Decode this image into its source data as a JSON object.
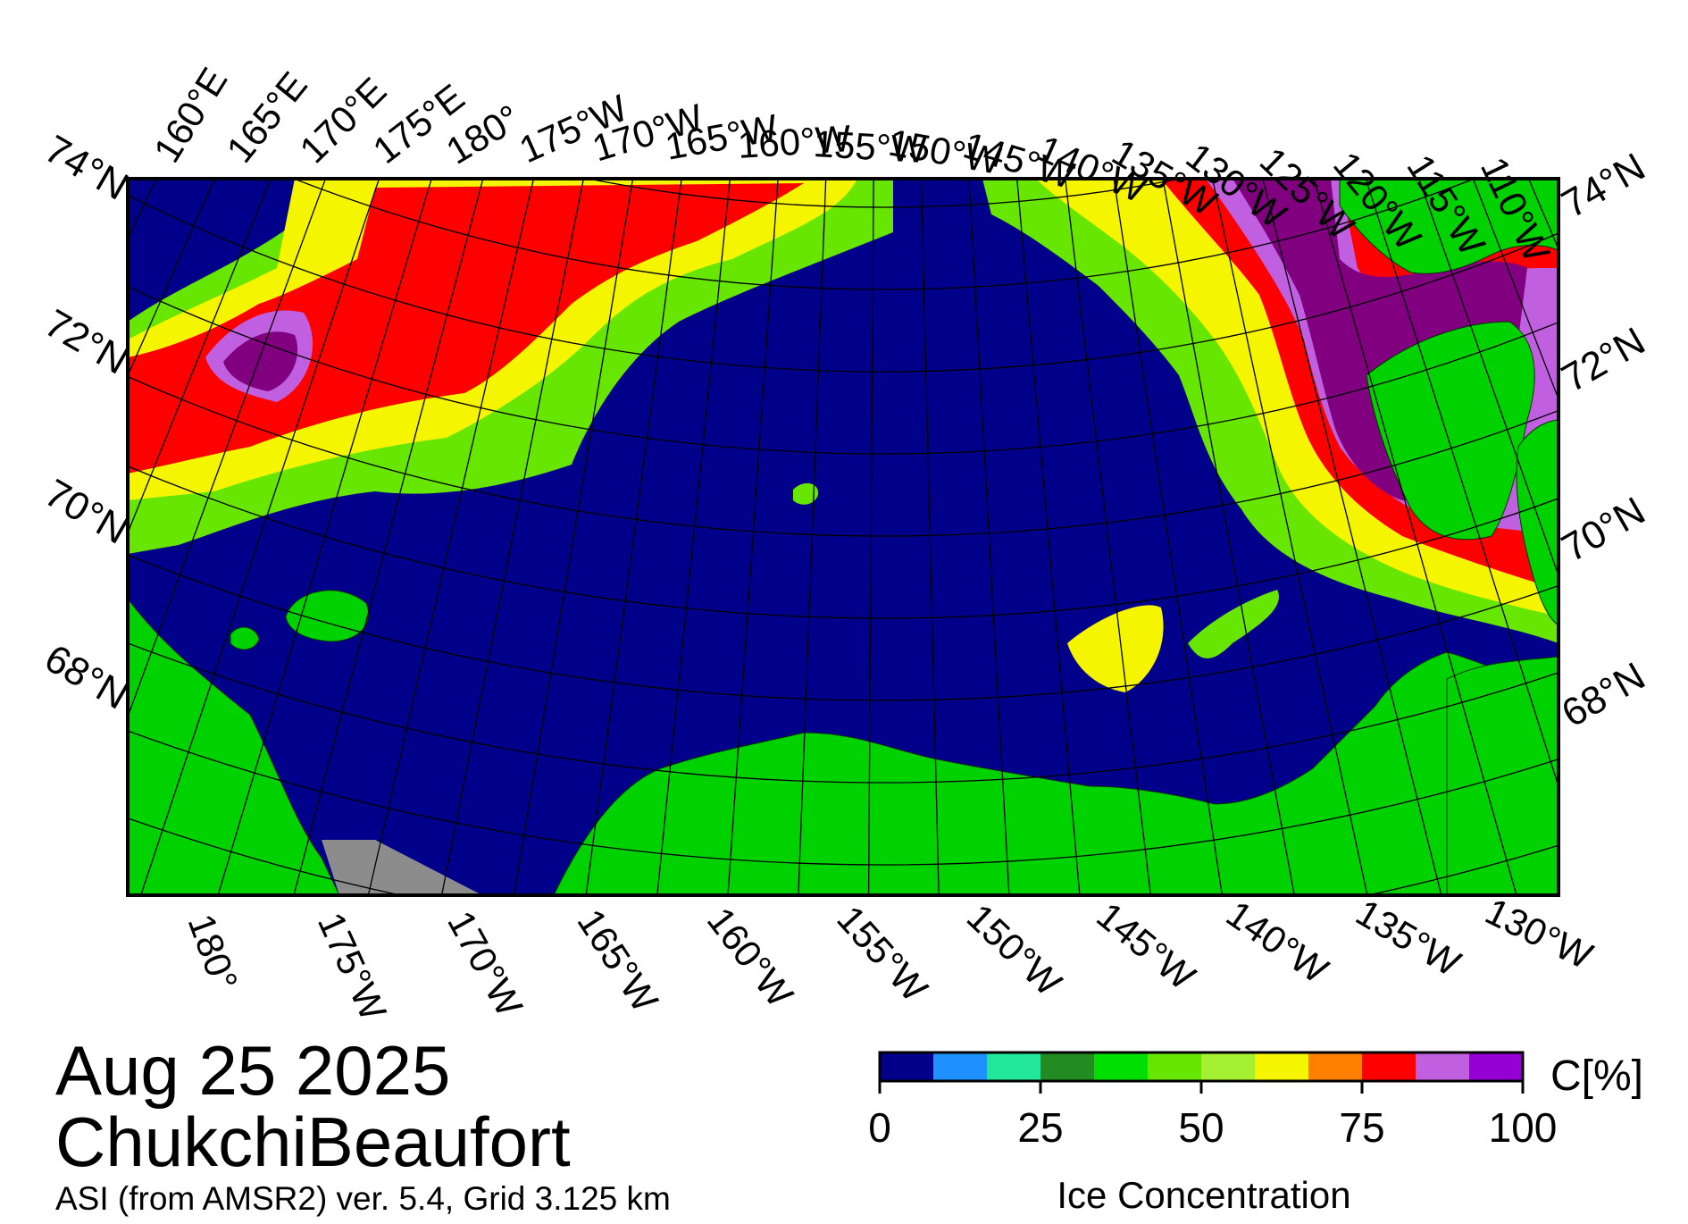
{
  "date": "Aug 25 2025",
  "region": "ChukchiBeaufort",
  "product": "ASI (from AMSR2) ver. 5.4,  Grid 3.125 km",
  "colorbar": {
    "title": "Ice Concentration",
    "unit": "C[%]",
    "tick_labels": [
      "0",
      "25",
      "50",
      "75",
      "100"
    ],
    "colors": [
      "#00008a",
      "#1e90ff",
      "#22e69a",
      "#228b22",
      "#00e000",
      "#66e600",
      "#a6f033",
      "#f5f500",
      "#ff7f00",
      "#ff0000",
      "#c060e0",
      "#9400d3"
    ]
  },
  "map": {
    "top_labels": [
      "160°E",
      "165°E",
      "170°E",
      "175°E",
      "180°",
      "175°W",
      "170°W",
      "165°W",
      "160°W",
      "155°W",
      "150°W",
      "145°W",
      "140°W",
      "135°W",
      "130°W",
      "125°W",
      "120°W",
      "115°W",
      "110°W"
    ],
    "bottom_labels": [
      "180°",
      "175°W",
      "170°W",
      "165°W",
      "160°W",
      "155°W",
      "150°W",
      "145°W",
      "140°W",
      "135°W",
      "130°W"
    ],
    "left_labels": [
      "74°N",
      "72°N",
      "70°N",
      "68°N"
    ],
    "right_labels": [
      "74°N",
      "72°N",
      "70°N",
      "68°N"
    ],
    "colors": {
      "ocean": "#00008a",
      "land": "#00d200",
      "no_data": "#8c8c8c",
      "grid": "#000000"
    }
  }
}
